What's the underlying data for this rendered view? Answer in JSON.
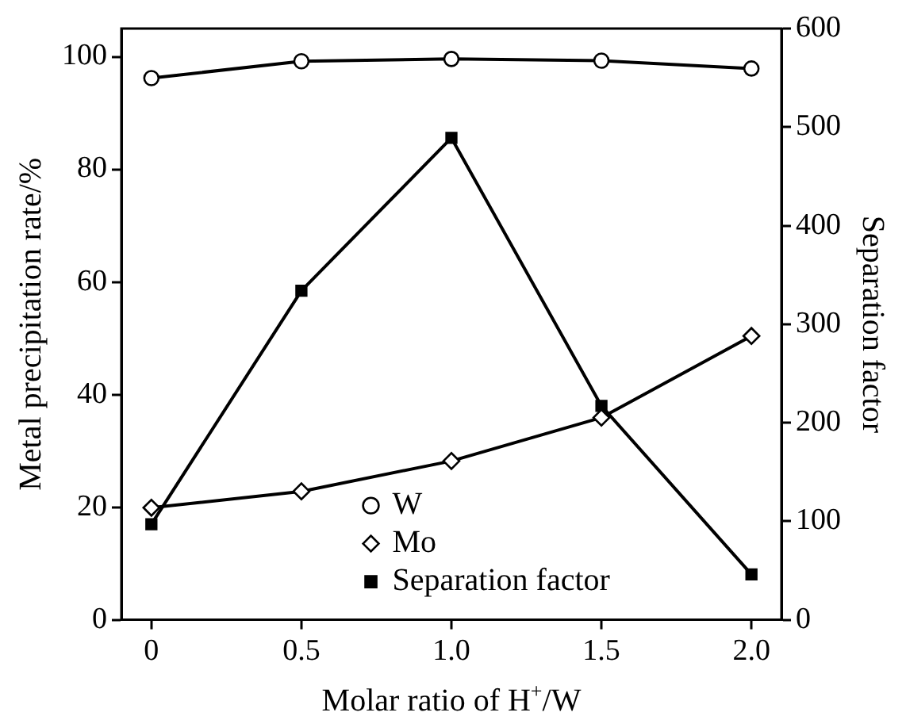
{
  "chart_data": {
    "type": "line",
    "xlabel": "Molar ratio of H$^{+}$/W",
    "ylabel": "Metal precipitation rate/%",
    "y2label": "Separation factor",
    "x": [
      0,
      0.5,
      1.0,
      1.5,
      2.0
    ],
    "xlim": [
      -0.1,
      2.1
    ],
    "xticks": [
      {
        "value": 0,
        "label": "0"
      },
      {
        "value": 0.5,
        "label": "0.5"
      },
      {
        "value": 1,
        "label": "1.0"
      },
      {
        "value": 1.5,
        "label": "1.5"
      },
      {
        "value": 2,
        "label": "2.0"
      }
    ],
    "ylim": [
      0,
      105
    ],
    "yticks": [
      0,
      20,
      40,
      60,
      80,
      100
    ],
    "y2lim": [
      0,
      600
    ],
    "y2ticks": [
      0,
      100,
      200,
      300,
      400,
      500,
      600
    ],
    "grid": false,
    "legend": "bottom",
    "line_style": "solid",
    "series": [
      {
        "name": "W",
        "color": "#000000",
        "marker": "circle",
        "values": [
          96.2,
          99.2,
          99.6,
          99.3,
          97.9
        ]
      },
      {
        "name": "Mo",
        "color": "#000000",
        "marker": "diamond",
        "values": [
          19.9,
          22.8,
          28.2,
          35.9,
          50.4
        ]
      },
      {
        "name": "Separation factor",
        "color": "#000000",
        "marker": "square",
        "axis": "y2",
        "values": [
          97,
          334,
          489,
          217,
          46
        ]
      }
    ]
  }
}
